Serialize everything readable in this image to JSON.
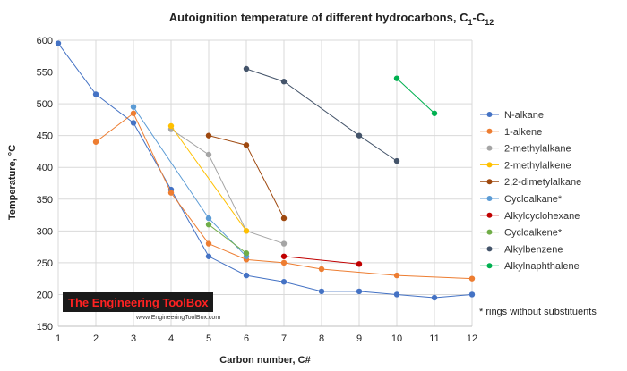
{
  "chart_data": {
    "type": "line",
    "title": "Autoignition temperature of different hydrocarbons, C",
    "title_sub1": "1",
    "title_dash": "-C",
    "title_sub2": "12",
    "xlabel": "Carbon number, C#",
    "ylabel": "Temperature, °C",
    "xlim": [
      1,
      12
    ],
    "ylim": [
      150,
      600
    ],
    "xticks": [
      1,
      2,
      3,
      4,
      5,
      6,
      7,
      8,
      9,
      10,
      11,
      12
    ],
    "yticks": [
      150,
      200,
      250,
      300,
      350,
      400,
      450,
      500,
      550,
      600
    ],
    "grid": true,
    "legend_position": "right",
    "note": "* rings without substituents",
    "series": [
      {
        "name": "N-alkane",
        "color": "#4472c4",
        "points": [
          [
            1,
            595
          ],
          [
            2,
            515
          ],
          [
            3,
            470
          ],
          [
            4,
            365
          ],
          [
            5,
            260
          ],
          [
            6,
            230
          ],
          [
            7,
            220
          ],
          [
            8,
            205
          ],
          [
            9,
            205
          ],
          [
            10,
            200
          ],
          [
            11,
            195
          ],
          [
            12,
            200
          ]
        ]
      },
      {
        "name": "1-alkene",
        "color": "#ed7d31",
        "points": [
          [
            2,
            440
          ],
          [
            3,
            485
          ],
          [
            4,
            360
          ],
          [
            5,
            280
          ],
          [
            6,
            255
          ],
          [
            7,
            250
          ],
          [
            8,
            240
          ],
          [
            10,
            230
          ],
          [
            12,
            225
          ]
        ]
      },
      {
        "name": "2-methylalkane",
        "color": "#a5a5a5",
        "points": [
          [
            4,
            460
          ],
          [
            5,
            420
          ],
          [
            6,
            300
          ],
          [
            7,
            280
          ]
        ]
      },
      {
        "name": "2-methylalkene",
        "color": "#ffc000",
        "points": [
          [
            4,
            465
          ],
          [
            6,
            300
          ]
        ]
      },
      {
        "name": "2,2-dimetylalkane",
        "color": "#9e480e",
        "points": [
          [
            5,
            450
          ],
          [
            6,
            435
          ],
          [
            7,
            320
          ]
        ]
      },
      {
        "name": "Cycloalkane*",
        "color": "#5b9bd5",
        "points": [
          [
            3,
            495
          ],
          [
            5,
            320
          ],
          [
            6,
            260
          ]
        ]
      },
      {
        "name": "Alkylcyclohexane",
        "color": "#c00000",
        "points": [
          [
            7,
            260
          ],
          [
            9,
            248
          ]
        ]
      },
      {
        "name": "Cycloalkene*",
        "color": "#70ad47",
        "points": [
          [
            5,
            310
          ],
          [
            6,
            265
          ]
        ]
      },
      {
        "name": "Alkylbenzene",
        "color": "#44546a",
        "points": [
          [
            6,
            555
          ],
          [
            7,
            535
          ],
          [
            9,
            450
          ],
          [
            10,
            410
          ]
        ]
      },
      {
        "name": "Alkylnaphthalene",
        "color": "#00b050",
        "points": [
          [
            10,
            540
          ],
          [
            11,
            485
          ]
        ]
      }
    ]
  },
  "watermark": {
    "brand": "The Engineering ToolBox",
    "url": "www.EngineeringToolBox.com"
  }
}
